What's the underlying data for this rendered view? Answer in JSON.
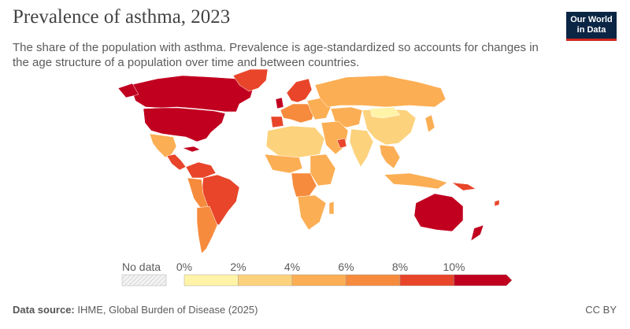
{
  "header": {
    "title": "Prevalence of asthma, 2023",
    "subtitle": "The share of the population with asthma. Prevalence is age-standardized so accounts for changes in the age structure of a population over time and between countries."
  },
  "logo": {
    "line1": "Our World",
    "line2": "in Data"
  },
  "legend": {
    "no_data_label": "No data",
    "ticks": [
      "0%",
      "2%",
      "4%",
      "6%",
      "8%",
      "10%"
    ],
    "bins": [
      {
        "from": 0,
        "to": 2,
        "color": "#fff3a8"
      },
      {
        "from": 2,
        "to": 4,
        "color": "#fdd27c"
      },
      {
        "from": 4,
        "to": 6,
        "color": "#fcae54"
      },
      {
        "from": 6,
        "to": 8,
        "color": "#f78b3d"
      },
      {
        "from": 8,
        "to": 10,
        "color": "#e8452a"
      },
      {
        "from": 10,
        "to": 12,
        "color": "#c1001f"
      }
    ]
  },
  "footer": {
    "source_label": "Data source:",
    "source_text": "IHME, Global Burden of Disease (2025)",
    "license": "CC BY"
  }
}
